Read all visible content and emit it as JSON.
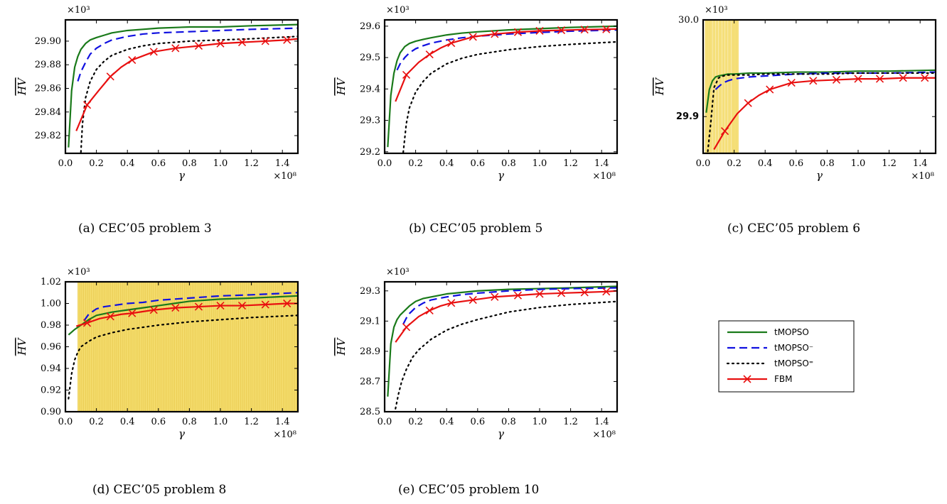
{
  "colors": {
    "tmopso": "#1a7a1a",
    "tmopso_minus": "#1010e0",
    "tmopso_eq": "#000000",
    "fbm": "#e81010",
    "shade": "#f4dc6c"
  },
  "legend": {
    "entries": [
      "tMOPSO",
      "tMOPSO⁻",
      "tMOPSO⁼",
      "FBM"
    ]
  },
  "chart_data": [
    {
      "type": "line",
      "caption": "(a)  CEC’05 problem 3",
      "ylabel": "HV",
      "xlabel": "γ",
      "x_multiplier": "×10⁸",
      "y_multiplier": "×10³",
      "xlim": [
        0,
        1.5
      ],
      "ylim": [
        29.805,
        29.918
      ],
      "xticks": [
        0,
        0.2,
        0.4,
        0.6,
        0.8,
        1.0,
        1.2,
        1.4
      ],
      "xtick_labels": [
        "0.0",
        "0.2",
        "0.4",
        "0.6",
        "0.8",
        "1.0",
        "1.2",
        "1.4"
      ],
      "yticks": [
        29.82,
        29.84,
        29.86,
        29.88,
        29.9
      ],
      "ytick_labels": [
        "29.82",
        "29.84",
        "29.86",
        "29.88",
        "29.90"
      ],
      "shaded": [],
      "series": [
        {
          "key": "tmopso",
          "x": [
            0.02,
            0.04,
            0.06,
            0.08,
            0.1,
            0.13,
            0.16,
            0.2,
            0.25,
            0.3,
            0.4,
            0.5,
            0.6,
            0.8,
            1.0,
            1.2,
            1.5
          ],
          "y": [
            29.81,
            29.858,
            29.878,
            29.887,
            29.893,
            29.898,
            29.901,
            29.903,
            29.905,
            29.907,
            29.909,
            29.91,
            29.911,
            29.912,
            29.912,
            29.913,
            29.914
          ]
        },
        {
          "key": "tmopso_minus",
          "x": [
            0.08,
            0.1,
            0.13,
            0.16,
            0.2,
            0.25,
            0.3,
            0.4,
            0.5,
            0.6,
            0.8,
            1.0,
            1.2,
            1.5
          ],
          "y": [
            29.866,
            29.874,
            29.882,
            29.889,
            29.894,
            29.898,
            29.901,
            29.904,
            29.906,
            29.907,
            29.908,
            29.909,
            29.91,
            29.911
          ]
        },
        {
          "key": "tmopso_eq",
          "x": [
            0.1,
            0.11,
            0.13,
            0.16,
            0.2,
            0.25,
            0.3,
            0.4,
            0.5,
            0.6,
            0.8,
            1.0,
            1.2,
            1.5
          ],
          "y": [
            29.806,
            29.83,
            29.852,
            29.866,
            29.876,
            29.883,
            29.888,
            29.893,
            29.896,
            29.898,
            29.9,
            29.901,
            29.902,
            29.904
          ]
        },
        {
          "key": "fbm",
          "x": [
            0.07,
            0.14,
            0.22,
            0.29,
            0.36,
            0.43,
            0.57,
            0.71,
            0.86,
            1.0,
            1.14,
            1.29,
            1.43,
            1.5
          ],
          "y": [
            29.824,
            29.846,
            29.859,
            29.87,
            29.878,
            29.884,
            29.891,
            29.894,
            29.896,
            29.898,
            29.899,
            29.9,
            29.901,
            29.902
          ],
          "markers": [
            0.14,
            0.29,
            0.43,
            0.57,
            0.71,
            0.86,
            1.0,
            1.14,
            1.29,
            1.43
          ]
        }
      ]
    },
    {
      "type": "line",
      "caption": "(b)  CEC’05 problem 5",
      "ylabel": "HV",
      "xlabel": "γ",
      "x_multiplier": "×10⁸",
      "y_multiplier": "×10³",
      "xlim": [
        0,
        1.5
      ],
      "ylim": [
        29.195,
        29.62
      ],
      "xticks": [
        0,
        0.2,
        0.4,
        0.6,
        0.8,
        1.0,
        1.2,
        1.4
      ],
      "xtick_labels": [
        "0.0",
        "0.2",
        "0.4",
        "0.6",
        "0.8",
        "1.0",
        "1.2",
        "1.4"
      ],
      "yticks": [
        29.2,
        29.3,
        29.4,
        29.5,
        29.6
      ],
      "ytick_labels": [
        "29.2",
        "29.3",
        "29.4",
        "29.5",
        "29.6"
      ],
      "shaded": [],
      "series": [
        {
          "key": "tmopso",
          "x": [
            0.02,
            0.04,
            0.06,
            0.08,
            0.1,
            0.13,
            0.16,
            0.2,
            0.25,
            0.3,
            0.4,
            0.5,
            0.6,
            0.8,
            1.0,
            1.2,
            1.5
          ],
          "y": [
            29.215,
            29.38,
            29.45,
            29.49,
            29.515,
            29.535,
            29.545,
            29.552,
            29.558,
            29.563,
            29.572,
            29.578,
            29.582,
            29.588,
            29.592,
            29.596,
            29.6
          ]
        },
        {
          "key": "tmopso_minus",
          "x": [
            0.08,
            0.1,
            0.13,
            0.16,
            0.2,
            0.25,
            0.3,
            0.4,
            0.5,
            0.6,
            0.8,
            1.0,
            1.2,
            1.5
          ],
          "y": [
            29.46,
            29.48,
            29.5,
            29.515,
            29.528,
            29.538,
            29.546,
            29.556,
            29.563,
            29.568,
            29.575,
            29.58,
            29.584,
            29.588
          ]
        },
        {
          "key": "tmopso_eq",
          "x": [
            0.12,
            0.14,
            0.16,
            0.2,
            0.25,
            0.3,
            0.4,
            0.5,
            0.6,
            0.8,
            1.0,
            1.2,
            1.5
          ],
          "y": [
            29.198,
            29.29,
            29.34,
            29.39,
            29.425,
            29.45,
            29.48,
            29.498,
            29.51,
            29.525,
            29.535,
            29.542,
            29.55
          ]
        },
        {
          "key": "fbm",
          "x": [
            0.07,
            0.14,
            0.22,
            0.29,
            0.36,
            0.43,
            0.57,
            0.71,
            0.86,
            1.0,
            1.14,
            1.29,
            1.43,
            1.5
          ],
          "y": [
            29.36,
            29.445,
            29.485,
            29.51,
            29.53,
            29.546,
            29.566,
            29.575,
            29.581,
            29.585,
            29.587,
            29.589,
            29.59,
            29.591
          ],
          "markers": [
            0.14,
            0.29,
            0.43,
            0.57,
            0.71,
            0.86,
            1.0,
            1.14,
            1.29,
            1.43
          ]
        }
      ]
    },
    {
      "type": "line",
      "caption": "(c)  CEC’05 problem 6",
      "ylabel": "HV",
      "xlabel": "γ",
      "x_multiplier": "×10⁸",
      "y_multiplier": "×10³",
      "xlim": [
        0,
        1.5
      ],
      "ylim": [
        29.862,
        30.0
      ],
      "xticks": [
        0,
        0.2,
        0.4,
        0.6,
        0.8,
        1.0,
        1.2,
        1.4
      ],
      "xtick_labels": [
        "0.0",
        "0.2",
        "0.4",
        "0.6",
        "0.8",
        "1.0",
        "1.2",
        "1.4"
      ],
      "yticks": [
        29.9,
        30.0
      ],
      "ytick_labels": [
        "29.9",
        "30.0"
      ],
      "shaded": [
        0.02,
        0.035,
        0.05,
        0.07,
        0.09,
        0.11,
        0.13,
        0.15,
        0.17,
        0.19,
        0.205,
        0.22
      ],
      "series": [
        {
          "key": "tmopso",
          "x": [
            0.02,
            0.04,
            0.06,
            0.08,
            0.1,
            0.13,
            0.16,
            0.2,
            0.3,
            0.4,
            0.6,
            0.8,
            1.0,
            1.2,
            1.5
          ],
          "y": [
            29.904,
            29.928,
            29.937,
            29.941,
            29.942,
            29.943,
            29.944,
            29.944,
            29.945,
            29.945,
            29.946,
            29.946,
            29.947,
            29.947,
            29.948
          ]
        },
        {
          "key": "tmopso_minus",
          "x": [
            0.08,
            0.1,
            0.13,
            0.16,
            0.2,
            0.3,
            0.4,
            0.6,
            0.8,
            1.0,
            1.2,
            1.5
          ],
          "y": [
            29.928,
            29.931,
            29.935,
            29.937,
            29.939,
            29.941,
            29.942,
            29.944,
            29.945,
            29.945,
            29.945,
            29.946
          ]
        },
        {
          "key": "tmopso_eq",
          "x": [
            0.03,
            0.05,
            0.07,
            0.1,
            0.13,
            0.16,
            0.2,
            0.3,
            0.4,
            0.6,
            0.8,
            1.0,
            1.2,
            1.5
          ],
          "y": [
            29.864,
            29.895,
            29.93,
            29.94,
            29.942,
            29.943,
            29.943,
            29.943,
            29.944,
            29.944,
            29.944,
            29.945,
            29.945,
            29.945
          ]
        },
        {
          "key": "fbm",
          "x": [
            0.07,
            0.14,
            0.22,
            0.29,
            0.36,
            0.43,
            0.57,
            0.71,
            0.86,
            1.0,
            1.14,
            1.29,
            1.43,
            1.5
          ],
          "y": [
            29.866,
            29.885,
            29.903,
            29.914,
            29.922,
            29.928,
            29.935,
            29.937,
            29.938,
            29.939,
            29.939,
            29.94,
            29.94,
            29.94
          ],
          "markers": [
            0.14,
            0.29,
            0.43,
            0.57,
            0.71,
            0.86,
            1.0,
            1.14,
            1.29,
            1.43
          ]
        }
      ]
    },
    {
      "type": "line",
      "caption": "(d)  CEC’05 problem 8",
      "ylabel": "HV",
      "xlabel": "γ",
      "x_multiplier": "×10⁸",
      "y_multiplier": "×10³",
      "xlim": [
        0,
        1.5
      ],
      "ylim": [
        0.9,
        1.02
      ],
      "xticks": [
        0,
        0.2,
        0.4,
        0.6,
        0.8,
        1.0,
        1.2,
        1.4
      ],
      "xtick_labels": [
        "0.0",
        "0.2",
        "0.4",
        "0.6",
        "0.8",
        "1.0",
        "1.2",
        "1.4"
      ],
      "yticks": [
        0.9,
        0.92,
        0.94,
        0.96,
        0.98,
        1.0,
        1.02
      ],
      "ytick_labels": [
        "0.90",
        "0.92",
        "0.94",
        "0.96",
        "0.98",
        "1.00",
        "1.02"
      ],
      "shaded_range": [
        0.08,
        1.5
      ],
      "shaded": [],
      "series": [
        {
          "key": "tmopso",
          "x": [
            0.02,
            0.06,
            0.1,
            0.15,
            0.2,
            0.3,
            0.4,
            0.5,
            0.6,
            0.7,
            0.8,
            1.0,
            1.2,
            1.5
          ],
          "y": [
            0.971,
            0.976,
            0.98,
            0.985,
            0.989,
            0.992,
            0.994,
            0.996,
            0.998,
            1.0,
            1.002,
            1.004,
            1.005,
            1.007
          ]
        },
        {
          "key": "tmopso_minus",
          "x": [
            0.12,
            0.15,
            0.2,
            0.25,
            0.3,
            0.4,
            0.5,
            0.6,
            0.8,
            1.0,
            1.2,
            1.5
          ],
          "y": [
            0.984,
            0.99,
            0.995,
            0.997,
            0.998,
            1.0,
            1.001,
            1.003,
            1.005,
            1.007,
            1.008,
            1.01
          ]
        },
        {
          "key": "tmopso_eq",
          "x": [
            0.02,
            0.04,
            0.06,
            0.08,
            0.1,
            0.15,
            0.2,
            0.3,
            0.4,
            0.5,
            0.6,
            0.8,
            1.0,
            1.2,
            1.5
          ],
          "y": [
            0.912,
            0.935,
            0.948,
            0.955,
            0.96,
            0.965,
            0.969,
            0.973,
            0.976,
            0.978,
            0.98,
            0.983,
            0.985,
            0.987,
            0.989
          ]
        },
        {
          "key": "fbm",
          "x": [
            0.07,
            0.14,
            0.22,
            0.29,
            0.36,
            0.43,
            0.57,
            0.71,
            0.86,
            1.0,
            1.14,
            1.29,
            1.43,
            1.5
          ],
          "y": [
            0.979,
            0.982,
            0.986,
            0.988,
            0.99,
            0.991,
            0.994,
            0.996,
            0.997,
            0.998,
            0.998,
            0.999,
            1.0,
            1.0
          ],
          "markers": [
            0.14,
            0.29,
            0.43,
            0.57,
            0.71,
            0.86,
            1.0,
            1.14,
            1.29,
            1.43
          ]
        }
      ]
    },
    {
      "type": "line",
      "caption": "(e)  CEC’05 problem 10",
      "ylabel": "HV",
      "xlabel": "γ",
      "x_multiplier": "×10⁸",
      "y_multiplier": "×10³",
      "xlim": [
        0,
        1.5
      ],
      "ylim": [
        28.5,
        29.36
      ],
      "xticks": [
        0,
        0.2,
        0.4,
        0.6,
        0.8,
        1.0,
        1.2,
        1.4
      ],
      "xtick_labels": [
        "0.0",
        "0.2",
        "0.4",
        "0.6",
        "0.8",
        "1.0",
        "1.2",
        "1.4"
      ],
      "yticks": [
        28.5,
        28.7,
        28.9,
        29.1,
        29.3
      ],
      "ytick_labels": [
        "28.5",
        "28.7",
        "28.9",
        "29.1",
        "29.3"
      ],
      "shaded": [],
      "series": [
        {
          "key": "tmopso",
          "x": [
            0.02,
            0.04,
            0.06,
            0.08,
            0.1,
            0.13,
            0.16,
            0.2,
            0.25,
            0.3,
            0.4,
            0.5,
            0.6,
            0.8,
            1.0,
            1.2,
            1.5
          ],
          "y": [
            28.6,
            28.95,
            29.06,
            29.11,
            29.14,
            29.17,
            29.2,
            29.23,
            29.25,
            29.26,
            29.28,
            29.29,
            29.3,
            29.31,
            29.315,
            29.32,
            29.33
          ]
        },
        {
          "key": "tmopso_minus",
          "x": [
            0.12,
            0.14,
            0.16,
            0.2,
            0.25,
            0.3,
            0.4,
            0.5,
            0.6,
            0.8,
            1.0,
            1.2,
            1.5
          ],
          "y": [
            29.08,
            29.12,
            29.15,
            29.19,
            29.22,
            29.24,
            29.26,
            29.275,
            29.285,
            29.3,
            29.31,
            29.315,
            29.32
          ]
        },
        {
          "key": "tmopso_eq",
          "x": [
            0.07,
            0.09,
            0.11,
            0.14,
            0.18,
            0.22,
            0.3,
            0.4,
            0.5,
            0.6,
            0.8,
            1.0,
            1.2,
            1.5
          ],
          "y": [
            28.52,
            28.62,
            28.7,
            28.78,
            28.86,
            28.91,
            28.98,
            29.04,
            29.08,
            29.11,
            29.16,
            29.19,
            29.21,
            29.23
          ]
        },
        {
          "key": "fbm",
          "x": [
            0.07,
            0.14,
            0.22,
            0.29,
            0.36,
            0.43,
            0.57,
            0.71,
            0.86,
            1.0,
            1.14,
            1.29,
            1.43,
            1.5
          ],
          "y": [
            28.96,
            29.06,
            29.13,
            29.17,
            29.2,
            29.22,
            29.24,
            29.26,
            29.27,
            29.28,
            29.285,
            29.29,
            29.295,
            29.3
          ],
          "markers": [
            0.14,
            0.29,
            0.43,
            0.57,
            0.71,
            0.86,
            1.0,
            1.14,
            1.29,
            1.43
          ]
        }
      ]
    }
  ]
}
